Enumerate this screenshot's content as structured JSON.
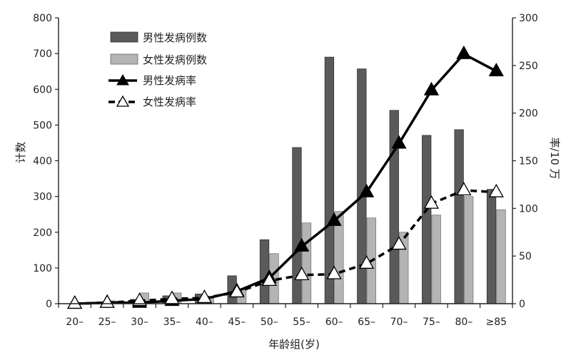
{
  "chart_data": {
    "type": "bar",
    "categories": [
      "20–",
      "25–",
      "30–",
      "35–",
      "40–",
      "45–",
      "50–",
      "55–",
      "60–",
      "65–",
      "70–",
      "75–",
      "80–",
      "≥85"
    ],
    "xlabel": "年龄组(岁)",
    "ylabel_left": "计数",
    "ylabel_right": "率/10 万",
    "ylim_left": [
      0,
      800
    ],
    "ylim_right": [
      0,
      300
    ],
    "yticks_left": [
      "0",
      "100",
      "200",
      "300",
      "400",
      "500",
      "600",
      "700",
      "800"
    ],
    "yticks_right": [
      "0",
      "50",
      "100",
      "150",
      "200",
      "250",
      "300"
    ],
    "legend_position": "top-left",
    "grid": false,
    "bar_series": [
      {
        "name": "男性发病例数",
        "color": "#5a5a5a",
        "values": [
          0,
          5,
          12,
          22,
          27,
          78,
          179,
          437,
          690,
          657,
          541,
          471,
          487,
          320
        ]
      },
      {
        "name": "女性发病例数",
        "color": "#b4b4b4",
        "values": [
          2,
          8,
          30,
          30,
          20,
          40,
          140,
          226,
          258,
          240,
          200,
          248,
          300,
          263
        ]
      }
    ],
    "line_series": [
      {
        "name": "男性发病率",
        "style": "solid",
        "marker": "filled-triangle",
        "color": "#000000",
        "values": [
          0,
          1,
          1,
          3,
          5,
          13,
          27,
          60,
          87,
          117,
          168,
          224,
          262,
          244
        ]
      },
      {
        "name": "女性发病率",
        "style": "dashed",
        "marker": "open-triangle",
        "color": "#000000",
        "values": [
          0,
          1,
          3,
          5,
          6,
          12,
          24,
          30,
          31,
          42,
          62,
          105,
          119,
          117
        ]
      }
    ]
  }
}
